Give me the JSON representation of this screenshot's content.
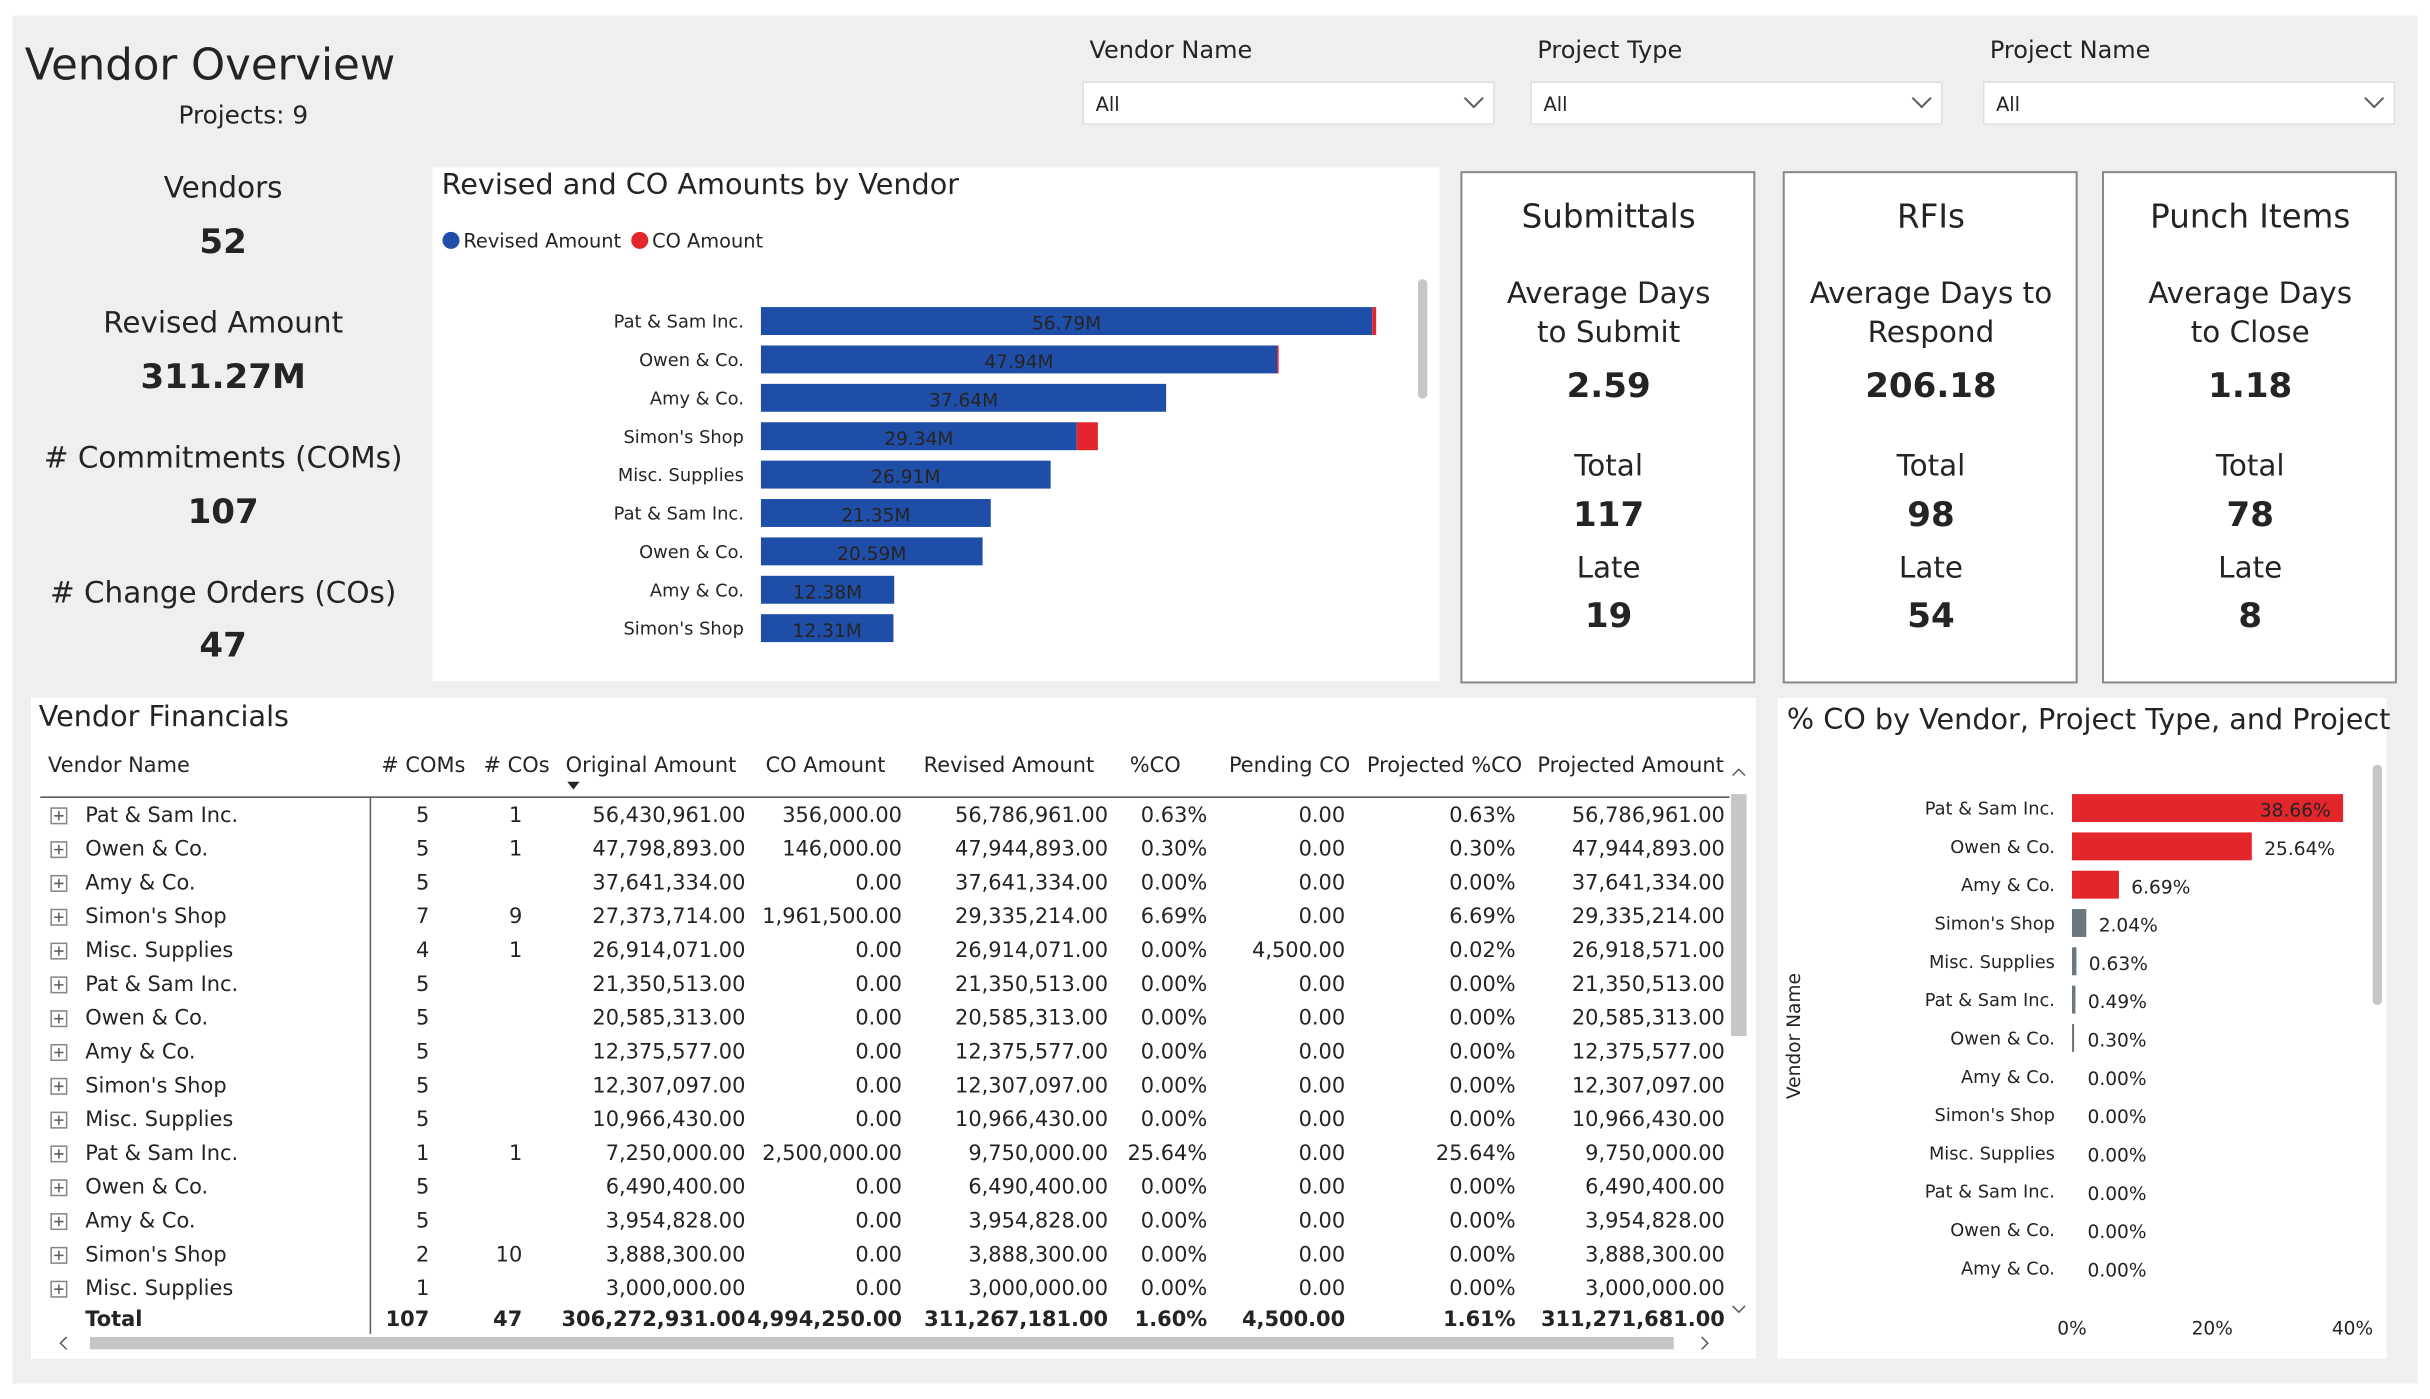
{
  "header": {
    "title": "Vendor Overview",
    "subtitle": "Projects: 9"
  },
  "filters": [
    {
      "label": "Vendor Name",
      "value": "All"
    },
    {
      "label": "Project Type",
      "value": "All"
    },
    {
      "label": "Project Name",
      "value": "All"
    }
  ],
  "kpis": [
    {
      "label": "Vendors",
      "value": "52"
    },
    {
      "label": "Revised Amount",
      "value": "311.27M"
    },
    {
      "label": "# Commitments (COMs)",
      "value": "107"
    },
    {
      "label": "# Change Orders (COs)",
      "value": "47"
    }
  ],
  "cards": [
    {
      "title": "Submittals",
      "metric_lines": [
        "Average Days",
        "to Submit"
      ],
      "average": "2.59",
      "total_label": "Total",
      "total": "117",
      "late_label": "Late",
      "late": "19"
    },
    {
      "title": "RFIs",
      "metric_lines": [
        "Average Days to",
        "Respond"
      ],
      "average": "206.18",
      "total_label": "Total",
      "total": "98",
      "late_label": "Late",
      "late": "54"
    },
    {
      "title": "Punch Items",
      "metric_lines": [
        "Average Days",
        "to Close"
      ],
      "average": "1.18",
      "total_label": "Total",
      "total": "78",
      "late_label": "Late",
      "late": "8"
    }
  ],
  "revised_chart": {
    "type": "bar",
    "title": "Revised and CO Amounts by Vendor",
    "categories": [
      "Pat & Sam Inc.",
      "Owen & Co.",
      "Amy & Co.",
      "Simon's Shop",
      "Misc. Supplies",
      "Pat & Sam Inc.",
      "Owen & Co.",
      "Amy & Co.",
      "Simon's Shop"
    ],
    "series": [
      {
        "name": "Revised Amount",
        "color": "#1f4ea8",
        "values": [
          56.79,
          47.94,
          37.64,
          29.34,
          26.91,
          21.35,
          20.59,
          12.38,
          12.31
        ],
        "value_labels": [
          "56.79M",
          "47.94M",
          "37.64M",
          "29.34M",
          "26.91M",
          "21.35M",
          "20.59M",
          "12.38M",
          "12.31M"
        ]
      },
      {
        "name": "CO Amount",
        "color": "#e3262b",
        "values": [
          0.36,
          0.15,
          0,
          1.96,
          0,
          0,
          0,
          0,
          0
        ]
      }
    ]
  },
  "table": {
    "title": "Vendor Financials",
    "columns": [
      "Vendor Name",
      "# COMs",
      "# COs",
      "Original Amount",
      "CO Amount",
      "Revised Amount",
      "%CO",
      "Pending CO",
      "Projected %CO",
      "Projected Amount"
    ],
    "rows": [
      [
        "Pat & Sam Inc.",
        "5",
        "1",
        "56,430,961.00",
        "356,000.00",
        "56,786,961.00",
        "0.63%",
        "0.00",
        "0.63%",
        "56,786,961.00"
      ],
      [
        "Owen & Co.",
        "5",
        "1",
        "47,798,893.00",
        "146,000.00",
        "47,944,893.00",
        "0.30%",
        "0.00",
        "0.30%",
        "47,944,893.00"
      ],
      [
        "Amy & Co.",
        "5",
        null,
        "37,641,334.00",
        "0.00",
        "37,641,334.00",
        "0.00%",
        "0.00",
        "0.00%",
        "37,641,334.00"
      ],
      [
        "Simon's Shop",
        "7",
        "9",
        "27,373,714.00",
        "1,961,500.00",
        "29,335,214.00",
        "6.69%",
        "0.00",
        "6.69%",
        "29,335,214.00"
      ],
      [
        "Misc. Supplies",
        "4",
        "1",
        "26,914,071.00",
        "0.00",
        "26,914,071.00",
        "0.00%",
        "4,500.00",
        "0.02%",
        "26,918,571.00"
      ],
      [
        "Pat & Sam Inc.",
        "5",
        null,
        "21,350,513.00",
        "0.00",
        "21,350,513.00",
        "0.00%",
        "0.00",
        "0.00%",
        "21,350,513.00"
      ],
      [
        "Owen & Co.",
        "5",
        null,
        "20,585,313.00",
        "0.00",
        "20,585,313.00",
        "0.00%",
        "0.00",
        "0.00%",
        "20,585,313.00"
      ],
      [
        "Amy & Co.",
        "5",
        null,
        "12,375,577.00",
        "0.00",
        "12,375,577.00",
        "0.00%",
        "0.00",
        "0.00%",
        "12,375,577.00"
      ],
      [
        "Simon's Shop",
        "5",
        null,
        "12,307,097.00",
        "0.00",
        "12,307,097.00",
        "0.00%",
        "0.00",
        "0.00%",
        "12,307,097.00"
      ],
      [
        "Misc. Supplies",
        "5",
        null,
        "10,966,430.00",
        "0.00",
        "10,966,430.00",
        "0.00%",
        "0.00",
        "0.00%",
        "10,966,430.00"
      ],
      [
        "Pat & Sam Inc.",
        "1",
        "1",
        "7,250,000.00",
        "2,500,000.00",
        "9,750,000.00",
        "25.64%",
        "0.00",
        "25.64%",
        "9,750,000.00"
      ],
      [
        "Owen & Co.",
        "5",
        null,
        "6,490,400.00",
        "0.00",
        "6,490,400.00",
        "0.00%",
        "0.00",
        "0.00%",
        "6,490,400.00"
      ],
      [
        "Amy & Co.",
        "5",
        null,
        "3,954,828.00",
        "0.00",
        "3,954,828.00",
        "0.00%",
        "0.00",
        "0.00%",
        "3,954,828.00"
      ],
      [
        "Simon's Shop",
        "2",
        "10",
        "3,888,300.00",
        "0.00",
        "3,888,300.00",
        "0.00%",
        "0.00",
        "0.00%",
        "3,888,300.00"
      ],
      [
        "Misc. Supplies",
        "1",
        null,
        "3,000,000.00",
        "0.00",
        "3,000,000.00",
        "0.00%",
        "0.00",
        "0.00%",
        "3,000,000.00"
      ]
    ],
    "total": [
      "Total",
      "107",
      "47",
      "306,272,931.00",
      "4,994,250.00",
      "311,267,181.00",
      "1.60%",
      "4,500.00",
      "1.61%",
      "311,271,681.00"
    ]
  },
  "co_chart": {
    "type": "bar",
    "title": "% CO by Vendor, Project Type, and Project",
    "y_label": "Vendor Name",
    "categories": [
      "Pat & Sam Inc.",
      "Owen & Co.",
      "Amy & Co.",
      "Simon's Shop",
      "Misc. Supplies",
      "Pat & Sam Inc.",
      "Owen & Co.",
      "Amy & Co.",
      "Simon's Shop",
      "Misc. Supplies",
      "Pat & Sam Inc.",
      "Owen & Co.",
      "Amy & Co."
    ],
    "values": [
      38.66,
      25.64,
      6.69,
      2.04,
      0.63,
      0.49,
      0.3,
      0,
      0,
      0,
      0,
      0,
      0
    ],
    "value_labels": [
      "38.66%",
      "25.64%",
      "6.69%",
      "2.04%",
      "0.63%",
      "0.49%",
      "0.30%",
      "0.00%",
      "0.00%",
      "0.00%",
      "0.00%",
      "0.00%",
      "0.00%"
    ],
    "colors": [
      "#e3262b",
      "#e3262b",
      "#e3262b",
      "#6b7780",
      "#6b7780",
      "#6b7780",
      "#6b7780",
      "#6b7780",
      "#6b7780",
      "#6b7780",
      "#6b7780",
      "#6b7780",
      "#6b7780"
    ],
    "xlim": [
      0,
      40
    ],
    "xticks": [
      {
        "value": 0,
        "label": "0%"
      },
      {
        "value": 20,
        "label": "20%"
      },
      {
        "value": 40,
        "label": "40%"
      }
    ]
  }
}
